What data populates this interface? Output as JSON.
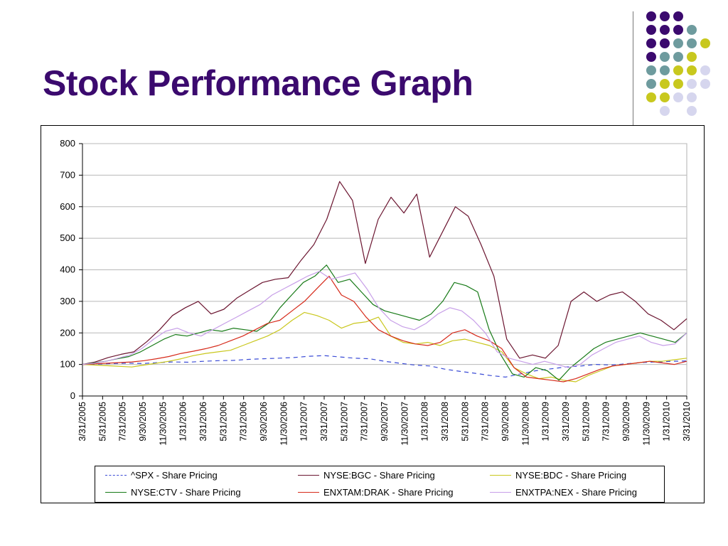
{
  "slide": {
    "title": "Stock Performance Graph",
    "accent_color": "#3b0a6e",
    "dot_palette": [
      "#3b0a6e",
      "#6e9b9e",
      "#c8c81e",
      "#d6d6ee"
    ]
  },
  "chart_data": {
    "type": "line",
    "title": "",
    "xlabel": "",
    "ylabel": "",
    "ylim": [
      0,
      800
    ],
    "yticks": [
      0,
      100,
      200,
      300,
      400,
      500,
      600,
      700,
      800
    ],
    "grid": true,
    "legend_position": "bottom",
    "x_tick_labels": [
      "3/31/2005",
      "5/31/2005",
      "7/31/2005",
      "9/30/2005",
      "11/30/2005",
      "1/31/2006",
      "3/31/2006",
      "5/31/2006",
      "7/31/2006",
      "9/30/2006",
      "11/30/2006",
      "1/31/2007",
      "3/31/2007",
      "5/31/2007",
      "7/31/2007",
      "9/30/2007",
      "11/30/2007",
      "1/31/2008",
      "3/31/2008",
      "5/31/2008",
      "7/31/2008",
      "9/30/2008",
      "11/30/2008",
      "1/31/2009",
      "3/31/2009",
      "5/31/2009",
      "7/31/2009",
      "9/30/2009",
      "11/30/2009",
      "1/31/2010",
      "3/31/2010"
    ],
    "series": [
      {
        "name": "^SPX - Share Pricing",
        "color": "#3a4bd6",
        "style": "dashed",
        "values": [
          100,
          101,
          103,
          104,
          103,
          106,
          108,
          107,
          110,
          112,
          113,
          116,
          118,
          120,
          122,
          126,
          128,
          124,
          120,
          118,
          110,
          104,
          98,
          95,
          85,
          78,
          72,
          65,
          60,
          70,
          80,
          86,
          92,
          95,
          100,
          98,
          102,
          106,
          108,
          110,
          111
        ]
      },
      {
        "name": "NYSE:BGC - Share Pricing",
        "color": "#6b1530",
        "style": "solid",
        "values": [
          100,
          108,
          122,
          132,
          140,
          172,
          210,
          255,
          280,
          300,
          260,
          275,
          310,
          335,
          360,
          370,
          375,
          430,
          480,
          560,
          680,
          620,
          420,
          560,
          630,
          580,
          640,
          440,
          520,
          600,
          570,
          480,
          380,
          180,
          120,
          130,
          120,
          160,
          300,
          330,
          300,
          320,
          330,
          300,
          260,
          240,
          210,
          245
        ]
      },
      {
        "name": "NYSE:BDC - Share Pricing",
        "color": "#c9c71c",
        "style": "solid",
        "values": [
          100,
          98,
          96,
          94,
          92,
          98,
          104,
          110,
          118,
          128,
          135,
          140,
          145,
          160,
          175,
          190,
          210,
          240,
          265,
          255,
          240,
          215,
          230,
          235,
          250,
          190,
          170,
          165,
          170,
          160,
          175,
          180,
          170,
          160,
          140,
          90,
          70,
          55,
          60,
          50,
          45,
          65,
          80,
          95,
          100,
          105,
          110,
          110,
          115,
          120
        ]
      },
      {
        "name": "NYSE:CTV - Share Pricing",
        "color": "#177a17",
        "style": "solid",
        "values": [
          100,
          105,
          110,
          118,
          125,
          140,
          160,
          180,
          195,
          190,
          200,
          210,
          205,
          215,
          210,
          205,
          230,
          280,
          320,
          360,
          380,
          415,
          360,
          370,
          330,
          290,
          270,
          260,
          250,
          240,
          260,
          300,
          360,
          350,
          330,
          210,
          130,
          70,
          60,
          90,
          80,
          50,
          90,
          120,
          150,
          170,
          180,
          190,
          200,
          190,
          180,
          170,
          200
        ]
      },
      {
        "name": "ENXTAM:DRAK - Share Pricing",
        "color": "#d62a1a",
        "style": "solid",
        "values": [
          100,
          102,
          104,
          106,
          108,
          112,
          118,
          125,
          135,
          142,
          150,
          160,
          175,
          190,
          210,
          230,
          240,
          270,
          300,
          340,
          380,
          320,
          300,
          250,
          210,
          190,
          175,
          165,
          160,
          170,
          200,
          210,
          190,
          175,
          150,
          90,
          60,
          55,
          50,
          45,
          55,
          70,
          85,
          95,
          100,
          105,
          110,
          105,
          100,
          110
        ]
      },
      {
        "name": "ENXTPA:NEX - Share Pricing",
        "color": "#c79ee8",
        "style": "solid",
        "values": [
          100,
          104,
          110,
          120,
          130,
          150,
          180,
          205,
          215,
          200,
          190,
          210,
          230,
          250,
          270,
          290,
          320,
          340,
          360,
          380,
          395,
          370,
          380,
          390,
          340,
          280,
          240,
          220,
          210,
          230,
          260,
          280,
          270,
          240,
          200,
          140,
          120,
          110,
          100,
          110,
          100,
          90,
          100,
          130,
          150,
          170,
          180,
          190,
          170,
          160,
          165,
          200
        ]
      }
    ]
  }
}
